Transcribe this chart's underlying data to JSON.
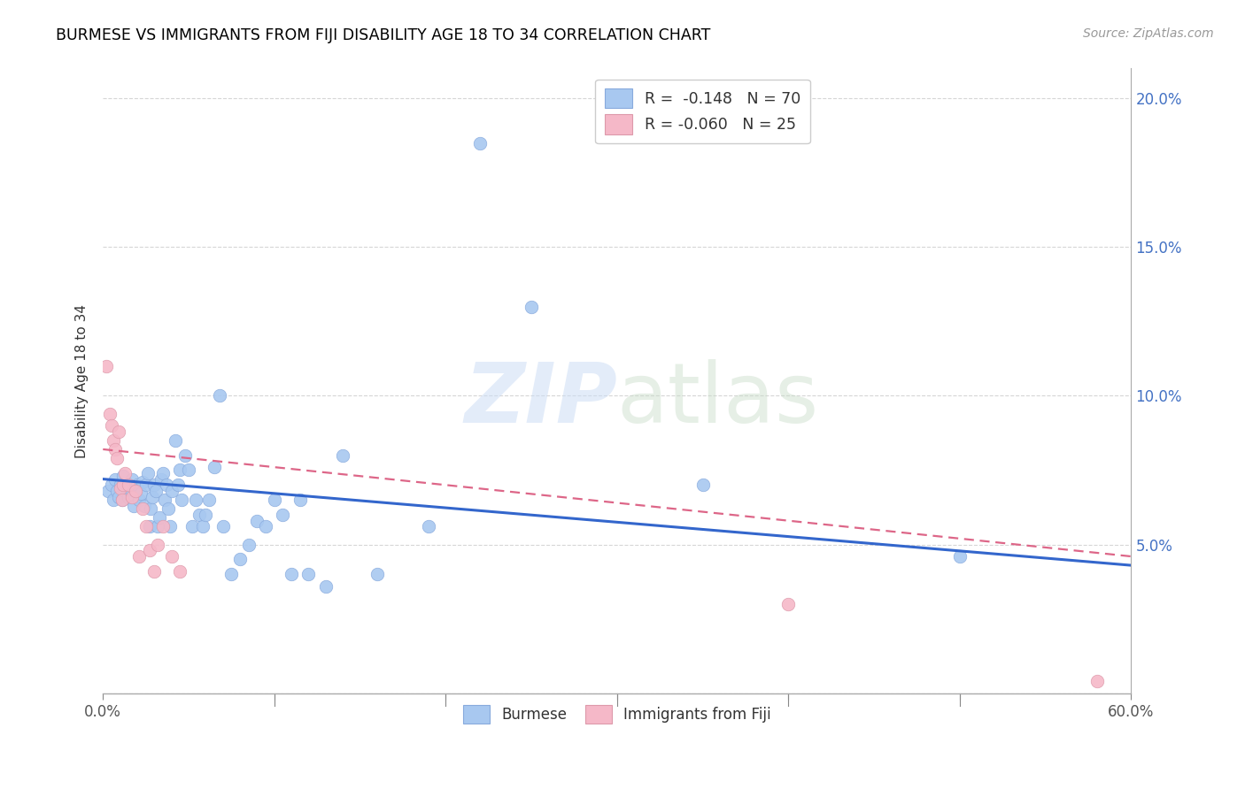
{
  "title": "BURMESE VS IMMIGRANTS FROM FIJI DISABILITY AGE 18 TO 34 CORRELATION CHART",
  "source": "Source: ZipAtlas.com",
  "ylabel": "Disability Age 18 to 34",
  "xlim": [
    0.0,
    0.6
  ],
  "ylim": [
    0.0,
    0.21
  ],
  "xticks": [
    0.0,
    0.1,
    0.2,
    0.3,
    0.4,
    0.5,
    0.6
  ],
  "yticks": [
    0.0,
    0.05,
    0.1,
    0.15,
    0.2
  ],
  "right_ytick_labels": [
    "",
    "5.0%",
    "10.0%",
    "15.0%",
    "20.0%"
  ],
  "xtick_labels": [
    "0.0%",
    "",
    "",
    "",
    "",
    "",
    "60.0%"
  ],
  "legend_blue_label": "R =  -0.148   N = 70",
  "legend_pink_label": "R = -0.060   N = 25",
  "legend_bottom_blue": "Burmese",
  "legend_bottom_pink": "Immigrants from Fiji",
  "blue_color": "#a8c8f0",
  "pink_color": "#f5b8c8",
  "blue_line_color": "#3366cc",
  "pink_line_color": "#dd6688",
  "blue_x": [
    0.003,
    0.005,
    0.006,
    0.007,
    0.008,
    0.009,
    0.01,
    0.011,
    0.012,
    0.013,
    0.014,
    0.015,
    0.016,
    0.017,
    0.018,
    0.019,
    0.02,
    0.021,
    0.022,
    0.023,
    0.024,
    0.025,
    0.026,
    0.027,
    0.028,
    0.029,
    0.03,
    0.031,
    0.032,
    0.033,
    0.034,
    0.035,
    0.036,
    0.037,
    0.038,
    0.039,
    0.04,
    0.042,
    0.044,
    0.045,
    0.046,
    0.048,
    0.05,
    0.052,
    0.054,
    0.056,
    0.058,
    0.06,
    0.062,
    0.065,
    0.068,
    0.07,
    0.075,
    0.08,
    0.085,
    0.09,
    0.095,
    0.1,
    0.105,
    0.11,
    0.115,
    0.12,
    0.13,
    0.14,
    0.16,
    0.19,
    0.22,
    0.25,
    0.35,
    0.5
  ],
  "blue_y": [
    0.068,
    0.07,
    0.065,
    0.072,
    0.068,
    0.066,
    0.07,
    0.065,
    0.073,
    0.068,
    0.07,
    0.066,
    0.069,
    0.072,
    0.063,
    0.068,
    0.07,
    0.065,
    0.067,
    0.071,
    0.063,
    0.07,
    0.074,
    0.056,
    0.062,
    0.066,
    0.07,
    0.068,
    0.056,
    0.059,
    0.072,
    0.074,
    0.065,
    0.07,
    0.062,
    0.056,
    0.068,
    0.085,
    0.07,
    0.075,
    0.065,
    0.08,
    0.075,
    0.056,
    0.065,
    0.06,
    0.056,
    0.06,
    0.065,
    0.076,
    0.1,
    0.056,
    0.04,
    0.045,
    0.05,
    0.058,
    0.056,
    0.065,
    0.06,
    0.04,
    0.065,
    0.04,
    0.036,
    0.08,
    0.04,
    0.056,
    0.185,
    0.13,
    0.07,
    0.046
  ],
  "pink_x": [
    0.002,
    0.004,
    0.005,
    0.006,
    0.007,
    0.008,
    0.009,
    0.01,
    0.011,
    0.012,
    0.013,
    0.015,
    0.017,
    0.019,
    0.021,
    0.023,
    0.025,
    0.027,
    0.03,
    0.032,
    0.035,
    0.04,
    0.045,
    0.4,
    0.58
  ],
  "pink_y": [
    0.11,
    0.094,
    0.09,
    0.085,
    0.082,
    0.079,
    0.088,
    0.069,
    0.065,
    0.07,
    0.074,
    0.07,
    0.066,
    0.068,
    0.046,
    0.062,
    0.056,
    0.048,
    0.041,
    0.05,
    0.056,
    0.046,
    0.041,
    0.03,
    0.004
  ],
  "blue_trend_x": [
    0.0,
    0.6
  ],
  "blue_trend_y": [
    0.072,
    0.043
  ],
  "pink_trend_x": [
    0.0,
    0.6
  ],
  "pink_trend_y": [
    0.082,
    0.046
  ]
}
